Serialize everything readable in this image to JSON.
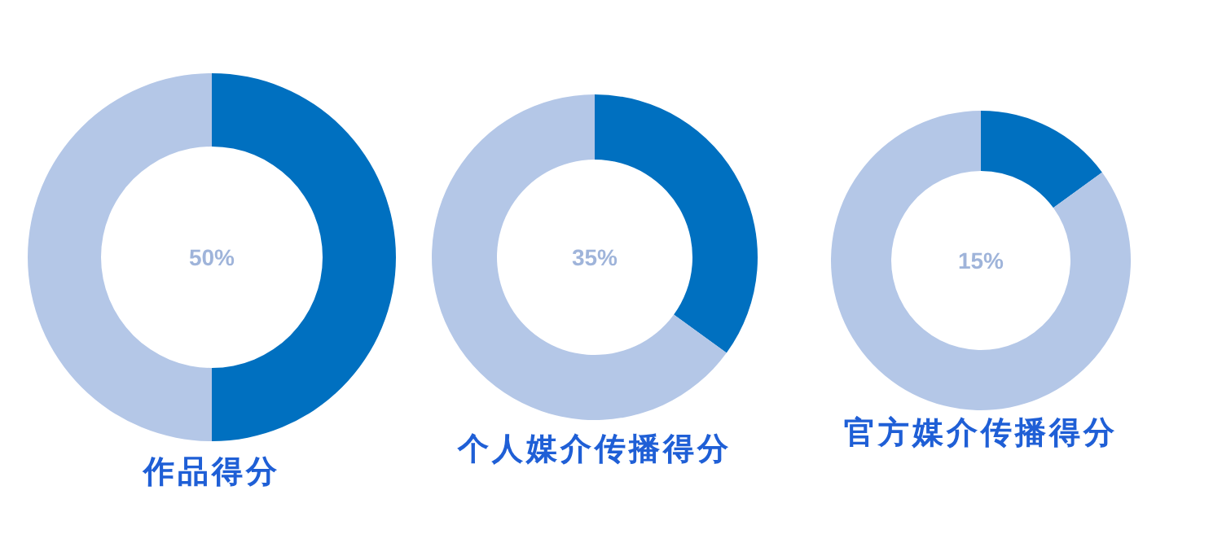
{
  "chart_data": [
    {
      "type": "donut",
      "title": "作品得分",
      "categories": [
        null,
        null
      ],
      "values": [
        50,
        50
      ],
      "colors": [
        "#0070c0",
        "#b4c7e7"
      ],
      "annotations": [
        "50%"
      ]
    },
    {
      "type": "donut",
      "title": "个人媒介传播得分",
      "categories": [
        null,
        null
      ],
      "values": [
        35,
        65
      ],
      "colors": [
        "#0070c0",
        "#b4c7e7"
      ],
      "annotations": [
        "35%"
      ]
    },
    {
      "type": "donut",
      "title": "官方媒介传播得分",
      "categories": [
        null,
        null
      ],
      "values": [
        15,
        85
      ],
      "colors": [
        "#0070c0",
        "#b4c7e7"
      ],
      "annotations": [
        "15%"
      ]
    }
  ]
}
